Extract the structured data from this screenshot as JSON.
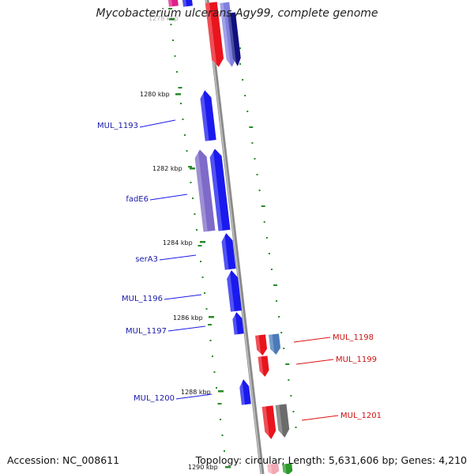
{
  "title": "Mycobacterium ulcerans Agy99, complete genome",
  "footer": {
    "accession": "Accession: NC_008611",
    "summary": "Topology: circular; Length: 5,631,606 bp; Genes: 4,210"
  },
  "colors": {
    "backbone": "#8a8a8a",
    "forward_gene": "#1a1aee",
    "reverse_gene": "#e8141e",
    "dots": "#2a8a2a",
    "label_forward": "#1a1aaa",
    "label_reverse": "#cc1111"
  },
  "ticks": [
    {
      "pos_kbp": 1278,
      "label": "1278 kbp"
    },
    {
      "pos_kbp": 1280,
      "label": "1280 kbp"
    },
    {
      "pos_kbp": 1282,
      "label": "1282 kbp"
    },
    {
      "pos_kbp": 1284,
      "label": "1284 kbp"
    },
    {
      "pos_kbp": 1286,
      "label": "1286 kbp"
    },
    {
      "pos_kbp": 1288,
      "label": "1288 kbp"
    },
    {
      "pos_kbp": 1290,
      "label": "1290 kbp"
    }
  ],
  "gene_labels": [
    {
      "name": "MUL_1193",
      "strand": "forward"
    },
    {
      "name": "fadE6",
      "strand": "forward"
    },
    {
      "name": "serA3",
      "strand": "forward"
    },
    {
      "name": "MUL_1196",
      "strand": "forward"
    },
    {
      "name": "MUL_1197",
      "strand": "forward"
    },
    {
      "name": "MUL_1198",
      "strand": "reverse"
    },
    {
      "name": "MUL_1199",
      "strand": "reverse"
    },
    {
      "name": "MUL_1200",
      "strand": "forward"
    },
    {
      "name": "MUL_1201",
      "strand": "reverse"
    }
  ]
}
